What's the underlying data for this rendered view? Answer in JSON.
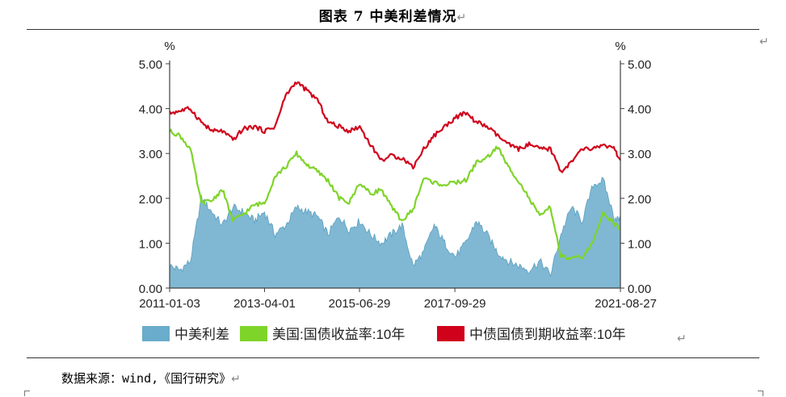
{
  "header": {
    "title": "图表 7 中美利差情况",
    "return_mark": "↵"
  },
  "source": {
    "text": "数据来源：wind,《国行研究》",
    "return_mark": "↵"
  },
  "chart_data": {
    "type": "area+line",
    "y_unit_left": "%",
    "y_unit_right": "%",
    "ylim": [
      0,
      5
    ],
    "yticks": [
      "0.00",
      "1.00",
      "2.00",
      "3.00",
      "4.00",
      "5.00"
    ],
    "xticks": [
      "2011-01-03",
      "2013-04-01",
      "2015-06-29",
      "2017-09-29",
      "2021-08-27"
    ],
    "x": [
      "2011-01-03",
      "2011-04-01",
      "2011-07-01",
      "2011-10-03",
      "2012-01-03",
      "2012-04-02",
      "2012-07-02",
      "2012-10-01",
      "2013-01-02",
      "2013-04-01",
      "2013-07-01",
      "2013-10-01",
      "2014-01-02",
      "2014-04-01",
      "2014-07-01",
      "2014-10-01",
      "2015-01-05",
      "2015-04-01",
      "2015-07-01",
      "2015-10-01",
      "2016-01-04",
      "2016-04-01",
      "2016-07-01",
      "2016-10-03",
      "2017-01-03",
      "2017-04-03",
      "2017-07-03",
      "2017-10-02",
      "2018-01-02",
      "2018-04-02",
      "2018-07-02",
      "2018-10-01",
      "2019-01-02",
      "2019-04-01",
      "2019-07-01",
      "2019-10-01",
      "2020-01-02",
      "2020-04-01",
      "2020-07-01",
      "2020-10-01",
      "2021-01-04",
      "2021-04-01",
      "2021-07-01",
      "2021-08-27"
    ],
    "legend": {
      "placement": "bottom"
    },
    "series": [
      {
        "name": "中美利差",
        "kind": "area",
        "color": "#6aaccb",
        "values": [
          0.5,
          0.4,
          0.6,
          2.0,
          1.7,
          1.4,
          1.8,
          1.7,
          1.5,
          1.7,
          1.2,
          1.4,
          1.8,
          1.7,
          1.6,
          1.2,
          1.6,
          1.3,
          1.5,
          1.2,
          1.0,
          1.2,
          1.4,
          0.5,
          0.8,
          1.4,
          1.0,
          0.7,
          1.0,
          1.5,
          1.2,
          0.8,
          0.6,
          0.5,
          0.4,
          0.6,
          0.3,
          1.2,
          1.8,
          1.5,
          2.3,
          2.4,
          1.6,
          1.5
        ]
      },
      {
        "name": "美国:国债收益率:10年",
        "kind": "line",
        "color": "#7fd42a",
        "values": [
          3.5,
          3.4,
          3.1,
          1.9,
          1.95,
          2.2,
          1.5,
          1.65,
          1.85,
          1.9,
          2.5,
          2.7,
          3.0,
          2.75,
          2.6,
          2.4,
          2.0,
          1.9,
          2.35,
          2.1,
          2.2,
          1.8,
          1.5,
          1.75,
          2.45,
          2.35,
          2.3,
          2.35,
          2.4,
          2.8,
          2.9,
          3.15,
          2.7,
          2.4,
          2.0,
          1.6,
          1.8,
          0.7,
          0.65,
          0.7,
          1.0,
          1.7,
          1.45,
          1.3
        ]
      },
      {
        "name": "中债国债到期收益率:10年",
        "kind": "line",
        "color": "#d0021b",
        "values": [
          3.9,
          3.95,
          4.0,
          3.7,
          3.5,
          3.5,
          3.3,
          3.55,
          3.6,
          3.5,
          3.6,
          4.3,
          4.6,
          4.4,
          4.2,
          3.7,
          3.6,
          3.5,
          3.6,
          3.2,
          2.85,
          2.95,
          2.9,
          2.7,
          3.1,
          3.4,
          3.6,
          3.8,
          3.9,
          3.7,
          3.6,
          3.4,
          3.2,
          3.1,
          3.2,
          3.1,
          3.1,
          2.6,
          2.8,
          3.1,
          3.1,
          3.2,
          3.1,
          2.85
        ]
      }
    ]
  }
}
